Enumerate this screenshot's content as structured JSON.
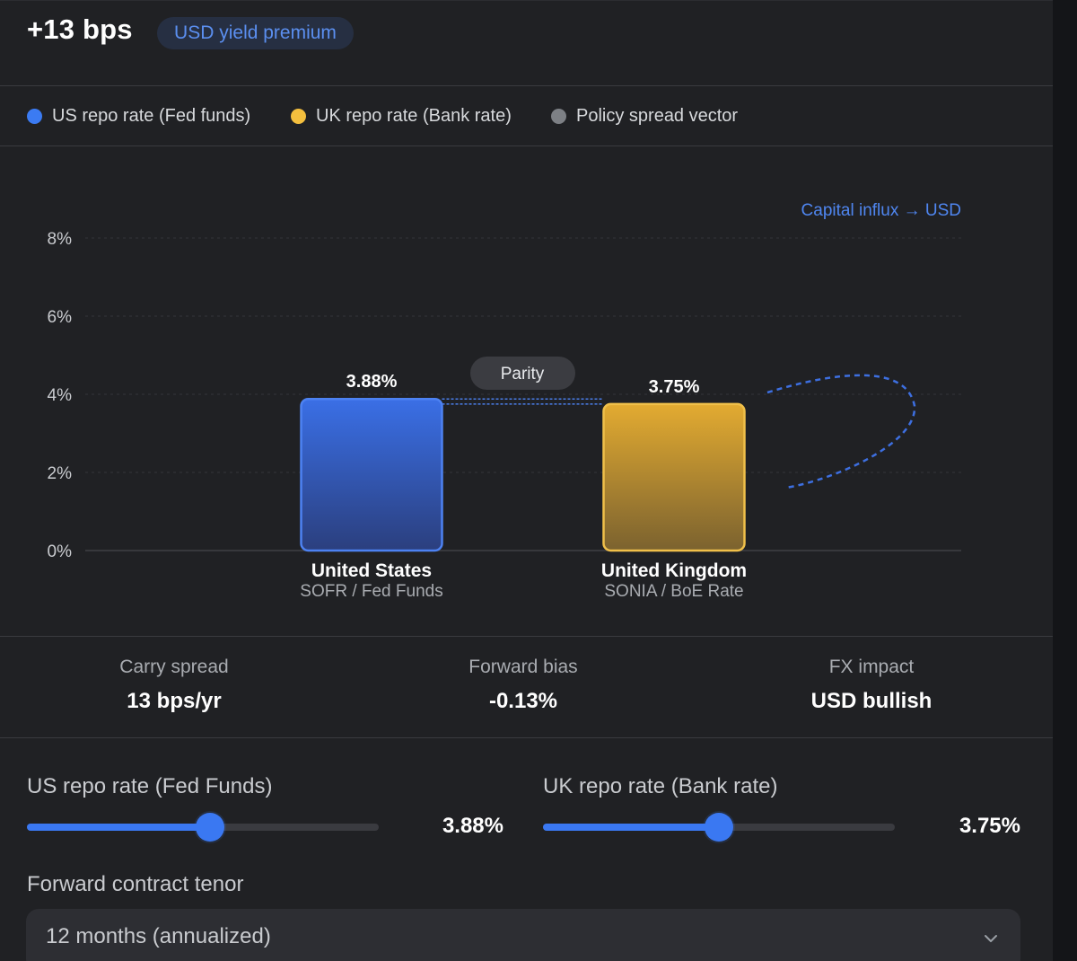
{
  "header": {
    "headline": "+13 bps",
    "premium_chip": "USD yield premium"
  },
  "legend": {
    "items": [
      {
        "label": "US repo rate (Fed funds)",
        "color": "#3b7bf3"
      },
      {
        "label": "UK repo rate (Bank rate)",
        "color": "#f4bf3e"
      },
      {
        "label": "Policy spread vector",
        "color": "#7d8085"
      }
    ]
  },
  "chart": {
    "annotation": "Capital influx → USD",
    "parity_label": "Parity",
    "y_ticks": [
      "0%",
      "2%",
      "4%",
      "6%",
      "8%"
    ]
  },
  "chart_data": {
    "type": "bar",
    "categories": [
      "United States",
      "United Kingdom"
    ],
    "subtitles": [
      "SOFR / Fed Funds",
      "SONIA / BoE Rate"
    ],
    "values": [
      3.88,
      3.75
    ],
    "value_labels": [
      "3.88%",
      "3.75%"
    ],
    "colors": [
      "#3b6fe8",
      "#e3aa30"
    ],
    "ylim": [
      0,
      8
    ],
    "y_ticks": [
      0,
      2,
      4,
      6,
      8
    ],
    "grid": true
  },
  "stats": {
    "carry_spread": {
      "label": "Carry spread",
      "value": "13 bps/yr"
    },
    "forward_bias": {
      "label": "Forward bias",
      "value": "-0.13%"
    },
    "fx_impact": {
      "label": "FX impact",
      "value": "USD bullish"
    }
  },
  "controls": {
    "us_rate": {
      "label": "US repo rate (Fed Funds)",
      "value": "3.88%",
      "position": 0.52
    },
    "uk_rate": {
      "label": "UK repo rate (Bank rate)",
      "value": "3.75%",
      "position": 0.5
    },
    "tenor": {
      "label": "Forward contract tenor",
      "selected": "12 months (annualized)",
      "chevron_icon": "chevron-down-icon"
    }
  }
}
